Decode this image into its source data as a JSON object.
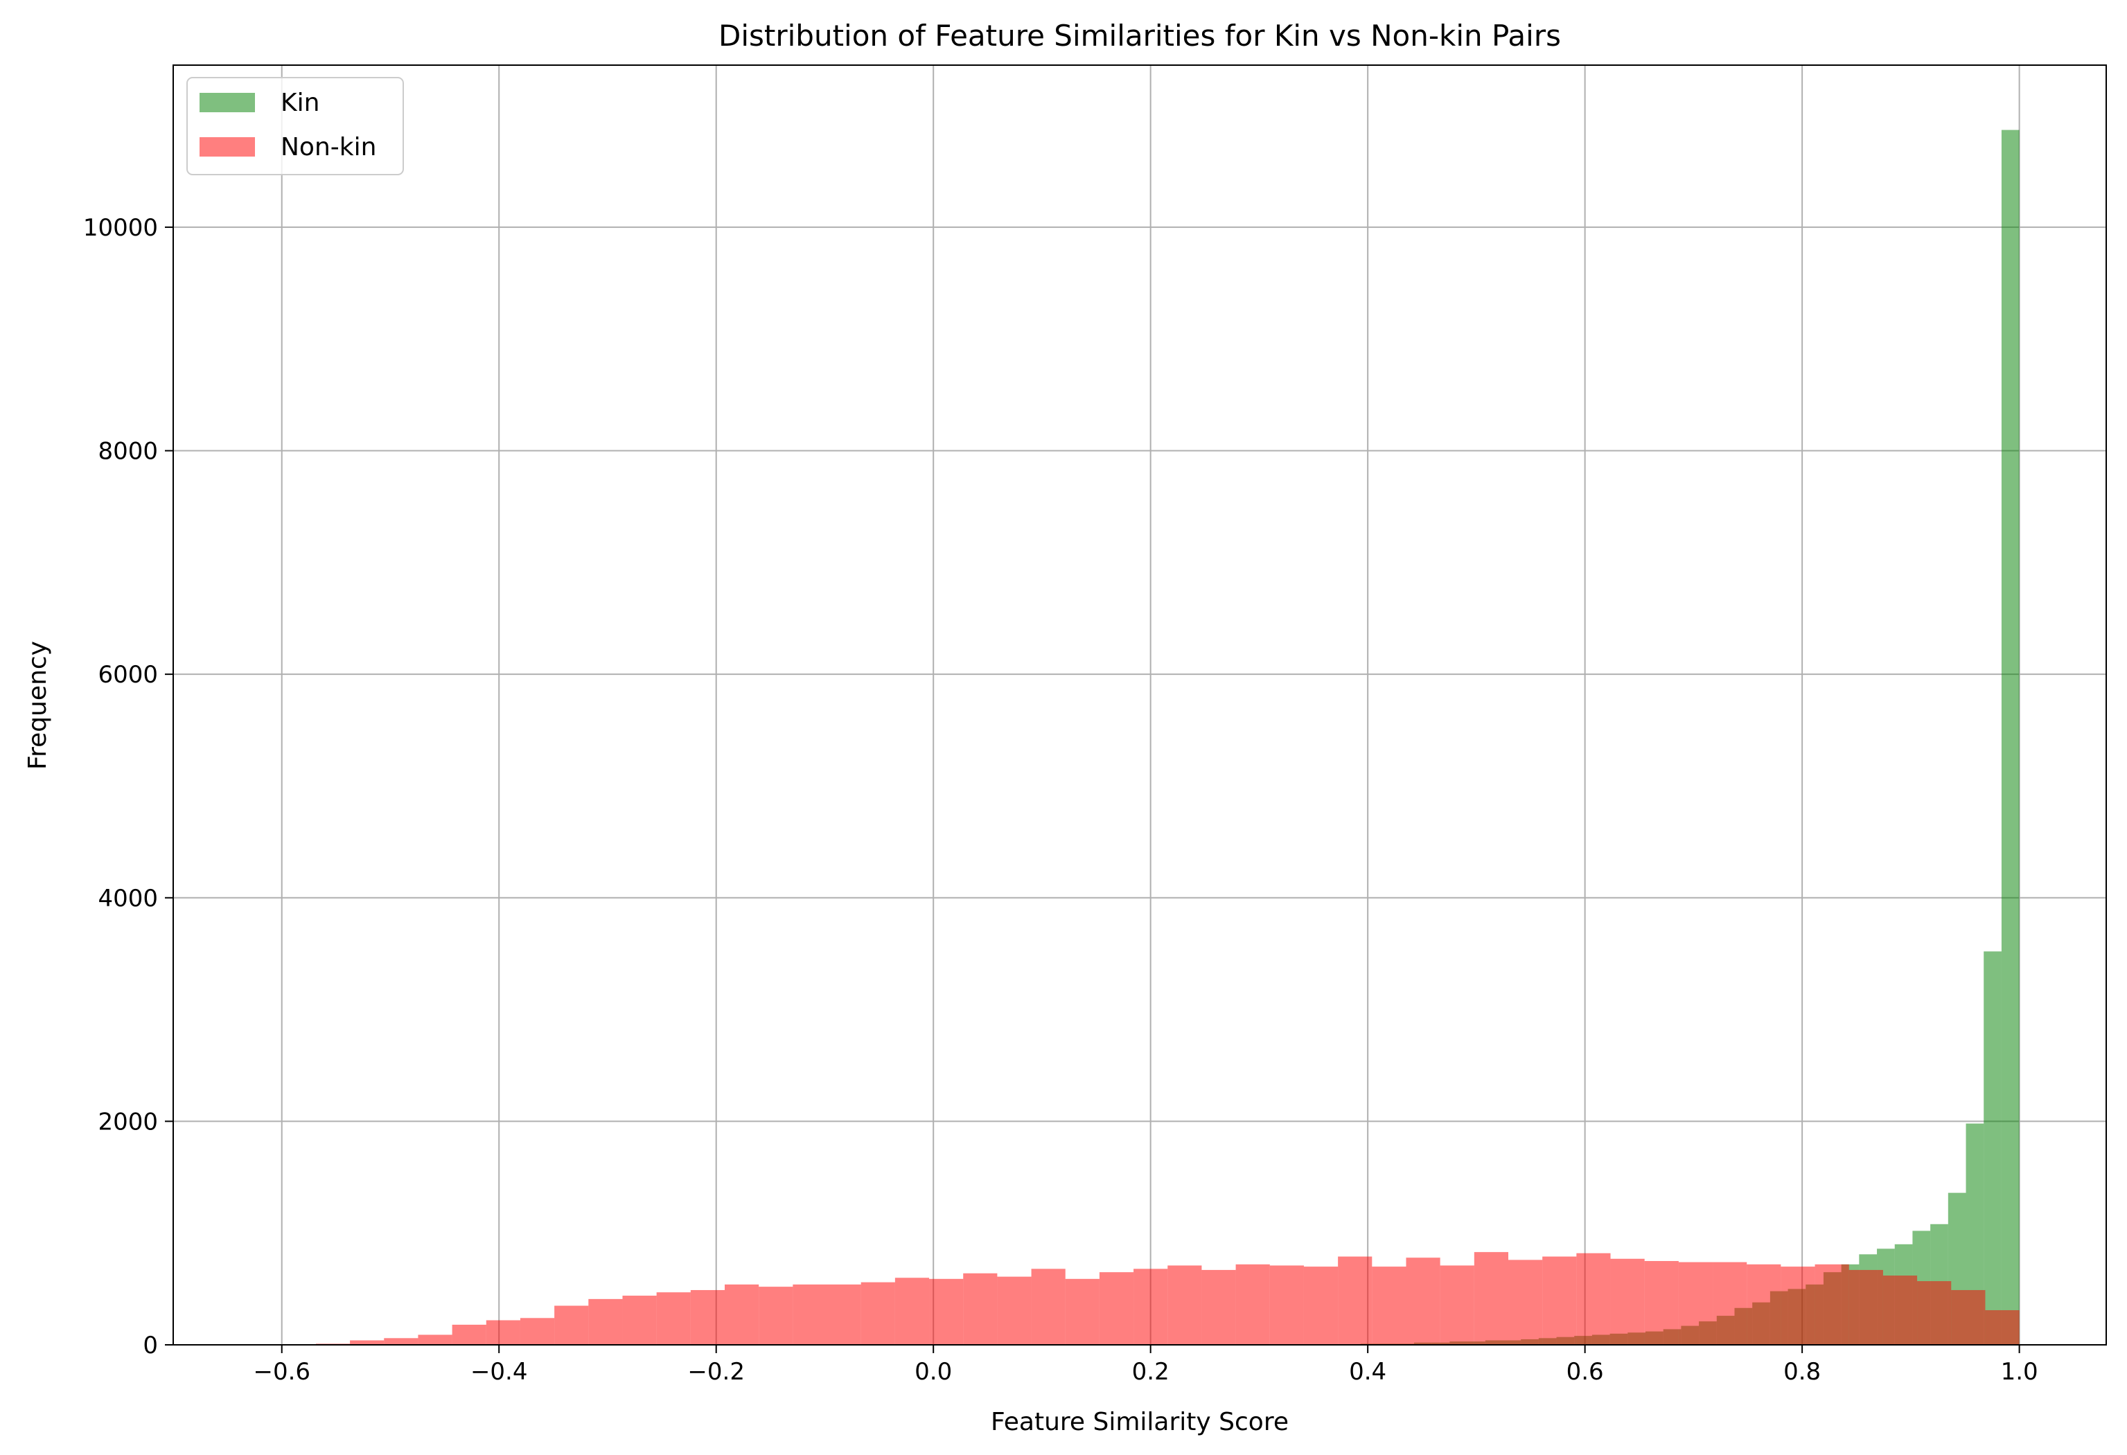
{
  "chart_data": {
    "type": "histogram",
    "title": "Distribution of Feature Similarities for Kin vs Non-kin Pairs",
    "xlabel": "Feature Similarity Score",
    "ylabel": "Frequency",
    "xlim": [
      -0.7,
      1.08
    ],
    "ylim": [
      0,
      11450
    ],
    "xticks": [
      -0.6,
      -0.4,
      -0.2,
      0.0,
      0.2,
      0.4,
      0.6,
      0.8,
      1.0
    ],
    "xtick_labels": [
      "−0.6",
      "−0.4",
      "−0.2",
      "0.0",
      "0.2",
      "0.4",
      "0.6",
      "0.8",
      "1.0"
    ],
    "yticks": [
      0,
      2000,
      4000,
      6000,
      8000,
      10000
    ],
    "ytick_labels": [
      "0",
      "2000",
      "4000",
      "6000",
      "8000",
      "10000"
    ],
    "grid": true,
    "legend_position": "top-left",
    "series": [
      {
        "name": "Kin",
        "color": "#008000",
        "opacity": 0.5,
        "bin_start": 0.0,
        "bin_end": 1.0,
        "counts": [
          0,
          0,
          0,
          0,
          0,
          0,
          0,
          0,
          0,
          0,
          0,
          0,
          0,
          0,
          0,
          0,
          0,
          0,
          0,
          0,
          0,
          0,
          0,
          0,
          10,
          10,
          10,
          20,
          20,
          30,
          30,
          40,
          40,
          50,
          60,
          70,
          80,
          90,
          100,
          110,
          120,
          140,
          170,
          210,
          260,
          330,
          380,
          480,
          500,
          540,
          650,
          720,
          810,
          860,
          900,
          1020,
          1080,
          1360,
          1980,
          3520,
          10870
        ]
      },
      {
        "name": "Non-kin",
        "color": "#ff0000",
        "opacity": 0.5,
        "bin_start": -0.6,
        "bin_end": 1.0,
        "counts": [
          0,
          10,
          40,
          60,
          90,
          180,
          220,
          240,
          350,
          410,
          440,
          470,
          490,
          540,
          520,
          540,
          540,
          560,
          600,
          590,
          640,
          610,
          680,
          590,
          650,
          680,
          710,
          670,
          720,
          710,
          700,
          790,
          700,
          780,
          710,
          830,
          760,
          790,
          820,
          770,
          750,
          740,
          740,
          720,
          700,
          720,
          670,
          620,
          570,
          490,
          310
        ]
      }
    ]
  }
}
